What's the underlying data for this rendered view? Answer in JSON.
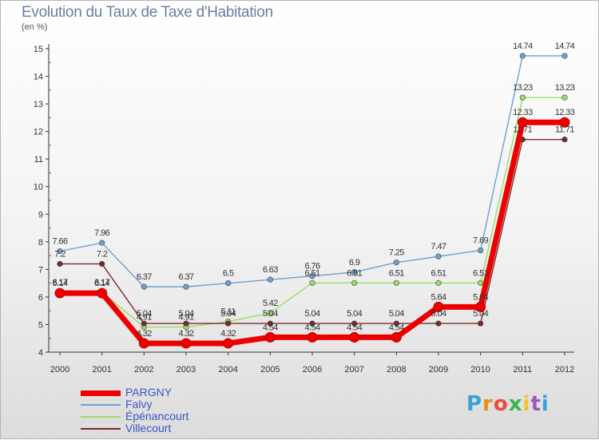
{
  "chart_data": {
    "type": "line",
    "title": "Evolution du Taux de Taxe d'Habitation",
    "subtitle": "(en %)",
    "x": [
      "2000",
      "2001",
      "2002",
      "2003",
      "2004",
      "2005",
      "2006",
      "2007",
      "2008",
      "2009",
      "2010",
      "2011",
      "2012"
    ],
    "ylim": [
      4,
      15
    ],
    "yticks": [
      4,
      5,
      6,
      7,
      8,
      9,
      10,
      11,
      12,
      13,
      14,
      15
    ],
    "grid": false,
    "legend_position": "bottom-left",
    "series": [
      {
        "name": "PARGNY",
        "color": "#ee0000",
        "values": [
          6.14,
          6.14,
          4.32,
          4.32,
          4.32,
          4.54,
          4.54,
          4.54,
          4.54,
          5.64,
          5.64,
          12.33,
          12.33
        ],
        "labels": [
          "6.14",
          "6.14",
          "4.32",
          "4.32",
          "4.32",
          "4.54",
          "4.54",
          "4.54",
          "4.54",
          "5.64",
          "5.64",
          "12.33",
          "12.33"
        ]
      },
      {
        "name": "Falvy",
        "color": "#6ea0d0",
        "values": [
          7.66,
          7.96,
          6.37,
          6.37,
          6.5,
          6.63,
          6.76,
          6.9,
          7.25,
          7.47,
          7.69,
          14.74,
          14.74
        ],
        "labels": [
          "7.66",
          "7.96",
          "6.37",
          "6.37",
          "6.5",
          "6.63",
          "6.76",
          "6.9",
          "7.25",
          "7.47",
          "7.69",
          "14.74",
          "14.74"
        ]
      },
      {
        "name": "Épénancourt",
        "color": "#99dd66",
        "values": [
          6.17,
          6.17,
          4.91,
          4.91,
          5.11,
          5.42,
          6.51,
          6.51,
          6.51,
          6.51,
          6.51,
          13.23,
          13.23
        ],
        "labels": [
          "6.17",
          "6.17",
          "4.91",
          "4.91",
          "5.11",
          "5.42",
          "6.51",
          "6.51",
          "6.51",
          "6.51",
          "6.51",
          "13.23",
          "13.23"
        ]
      },
      {
        "name": "Villecourt",
        "color": "#7a2a2a",
        "values": [
          7.2,
          7.2,
          5.04,
          5.04,
          5.04,
          5.04,
          5.04,
          5.04,
          5.04,
          5.04,
          5.04,
          11.71,
          11.71
        ],
        "labels": [
          "7.2",
          "7.2",
          "5.04",
          "5.04",
          "5.04",
          "5.04",
          "5.04",
          "5.04",
          "5.04",
          "5.04",
          "5.04",
          "11.71",
          "11.71"
        ]
      }
    ]
  },
  "logo": {
    "text": "Proxiti",
    "colors": [
      "#3aa0d8",
      "#f08a1c",
      "#e84c3d",
      "#3ab54a",
      "#f3c41b",
      "#9b59b6",
      "#3aa0d8"
    ]
  }
}
